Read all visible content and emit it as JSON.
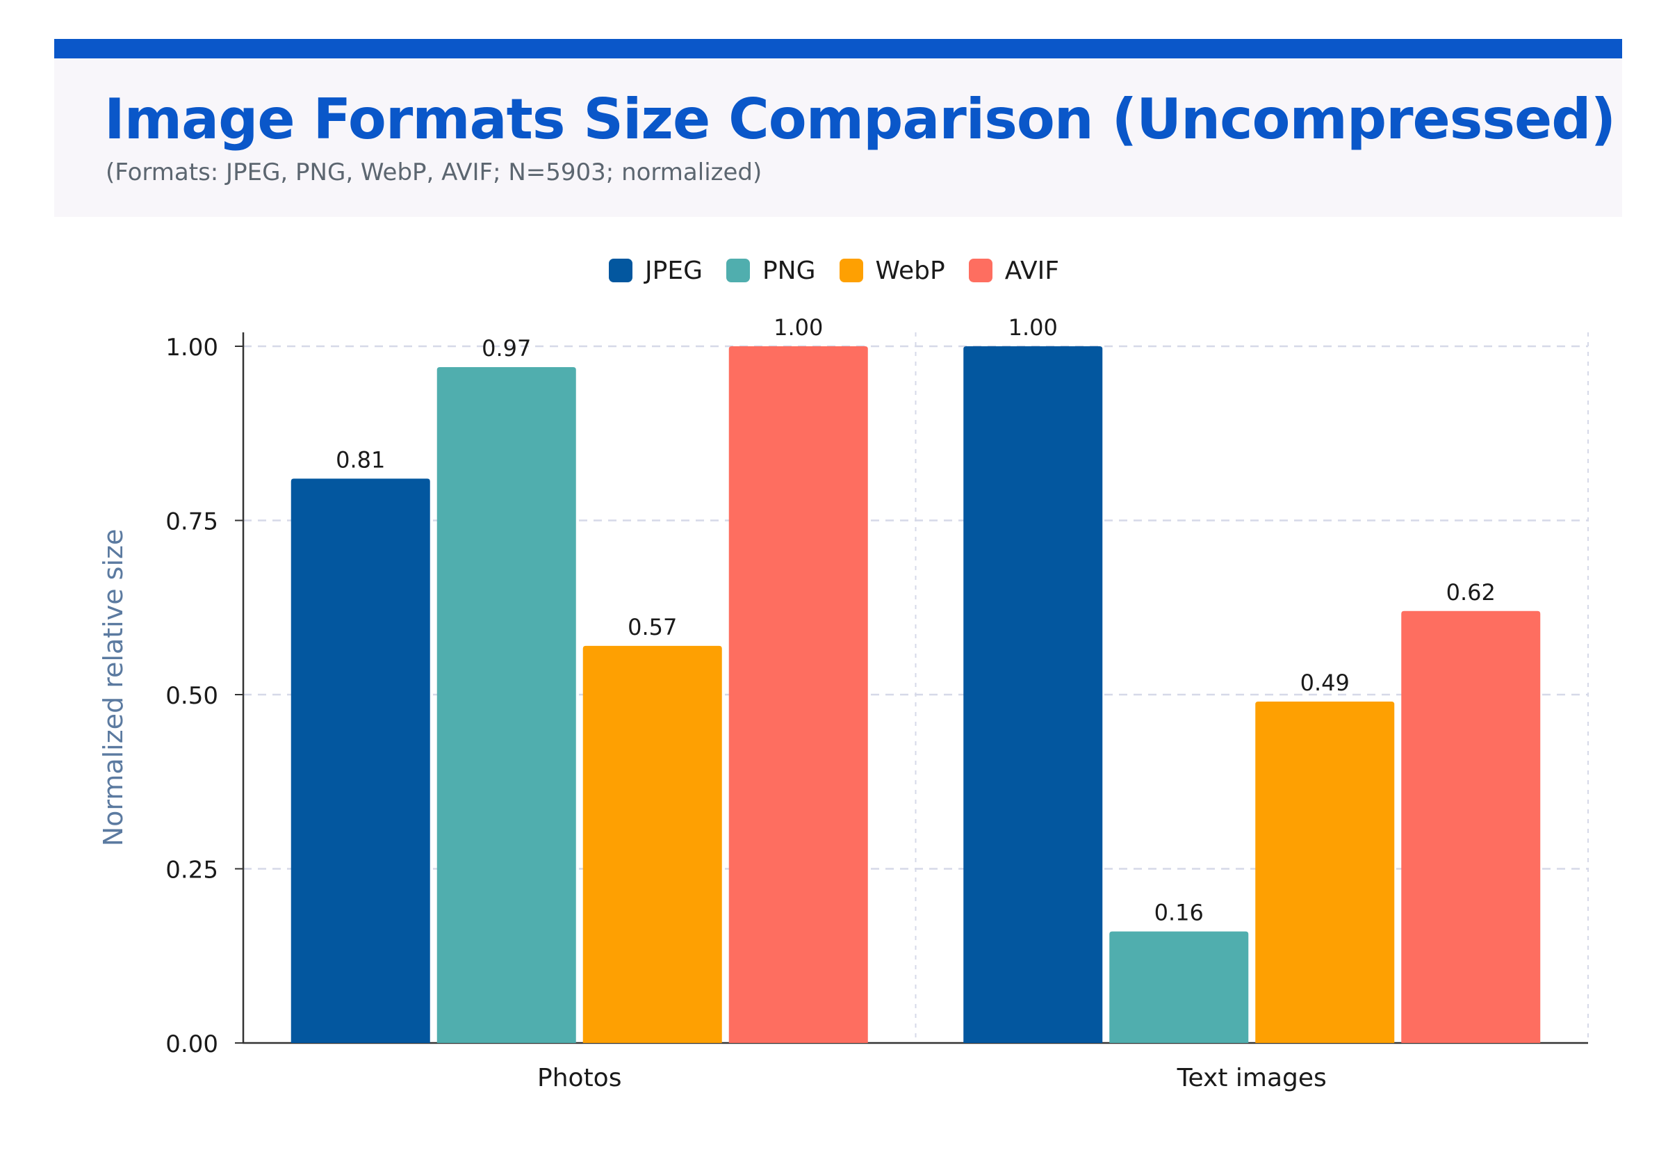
{
  "chart_data": {
    "type": "bar",
    "title": "Image Formats Size Comparison (Uncompressed)",
    "subtitle": "(Formats: JPEG, PNG, WebP, AVIF; N=5903; normalized)",
    "xlabel": "",
    "ylabel": "Normalized relative size",
    "ylim": [
      0,
      1
    ],
    "yticks": [
      "0.00",
      "0.25",
      "0.50",
      "0.75",
      "1.00"
    ],
    "ytick_values": [
      0,
      0.25,
      0.5,
      0.75,
      1.0
    ],
    "categories": [
      "Photos",
      "Text images"
    ],
    "series": [
      {
        "name": "JPEG",
        "color": "#03579f",
        "values": [
          0.81,
          1.0
        ],
        "labels": [
          "0.81",
          "1.00"
        ]
      },
      {
        "name": "PNG",
        "color": "#50aeae",
        "values": [
          0.97,
          0.16
        ],
        "labels": [
          "0.97",
          "0.16"
        ]
      },
      {
        "name": "WebP",
        "color": "#fea002",
        "values": [
          0.57,
          0.49
        ],
        "labels": [
          "0.57",
          "0.49"
        ]
      },
      {
        "name": "AVIF",
        "color": "#fe6e60",
        "values": [
          1.0,
          0.62
        ],
        "labels": [
          "1.00",
          "0.62"
        ]
      }
    ],
    "grid": true,
    "legend_position": "top-center"
  },
  "colors": {
    "header_accent": "#0a57c9",
    "title": "#0a57c9",
    "header_panel": "#f8f6fa",
    "axis_label": "#5b7aa0",
    "grid": "#d6d9e8"
  }
}
